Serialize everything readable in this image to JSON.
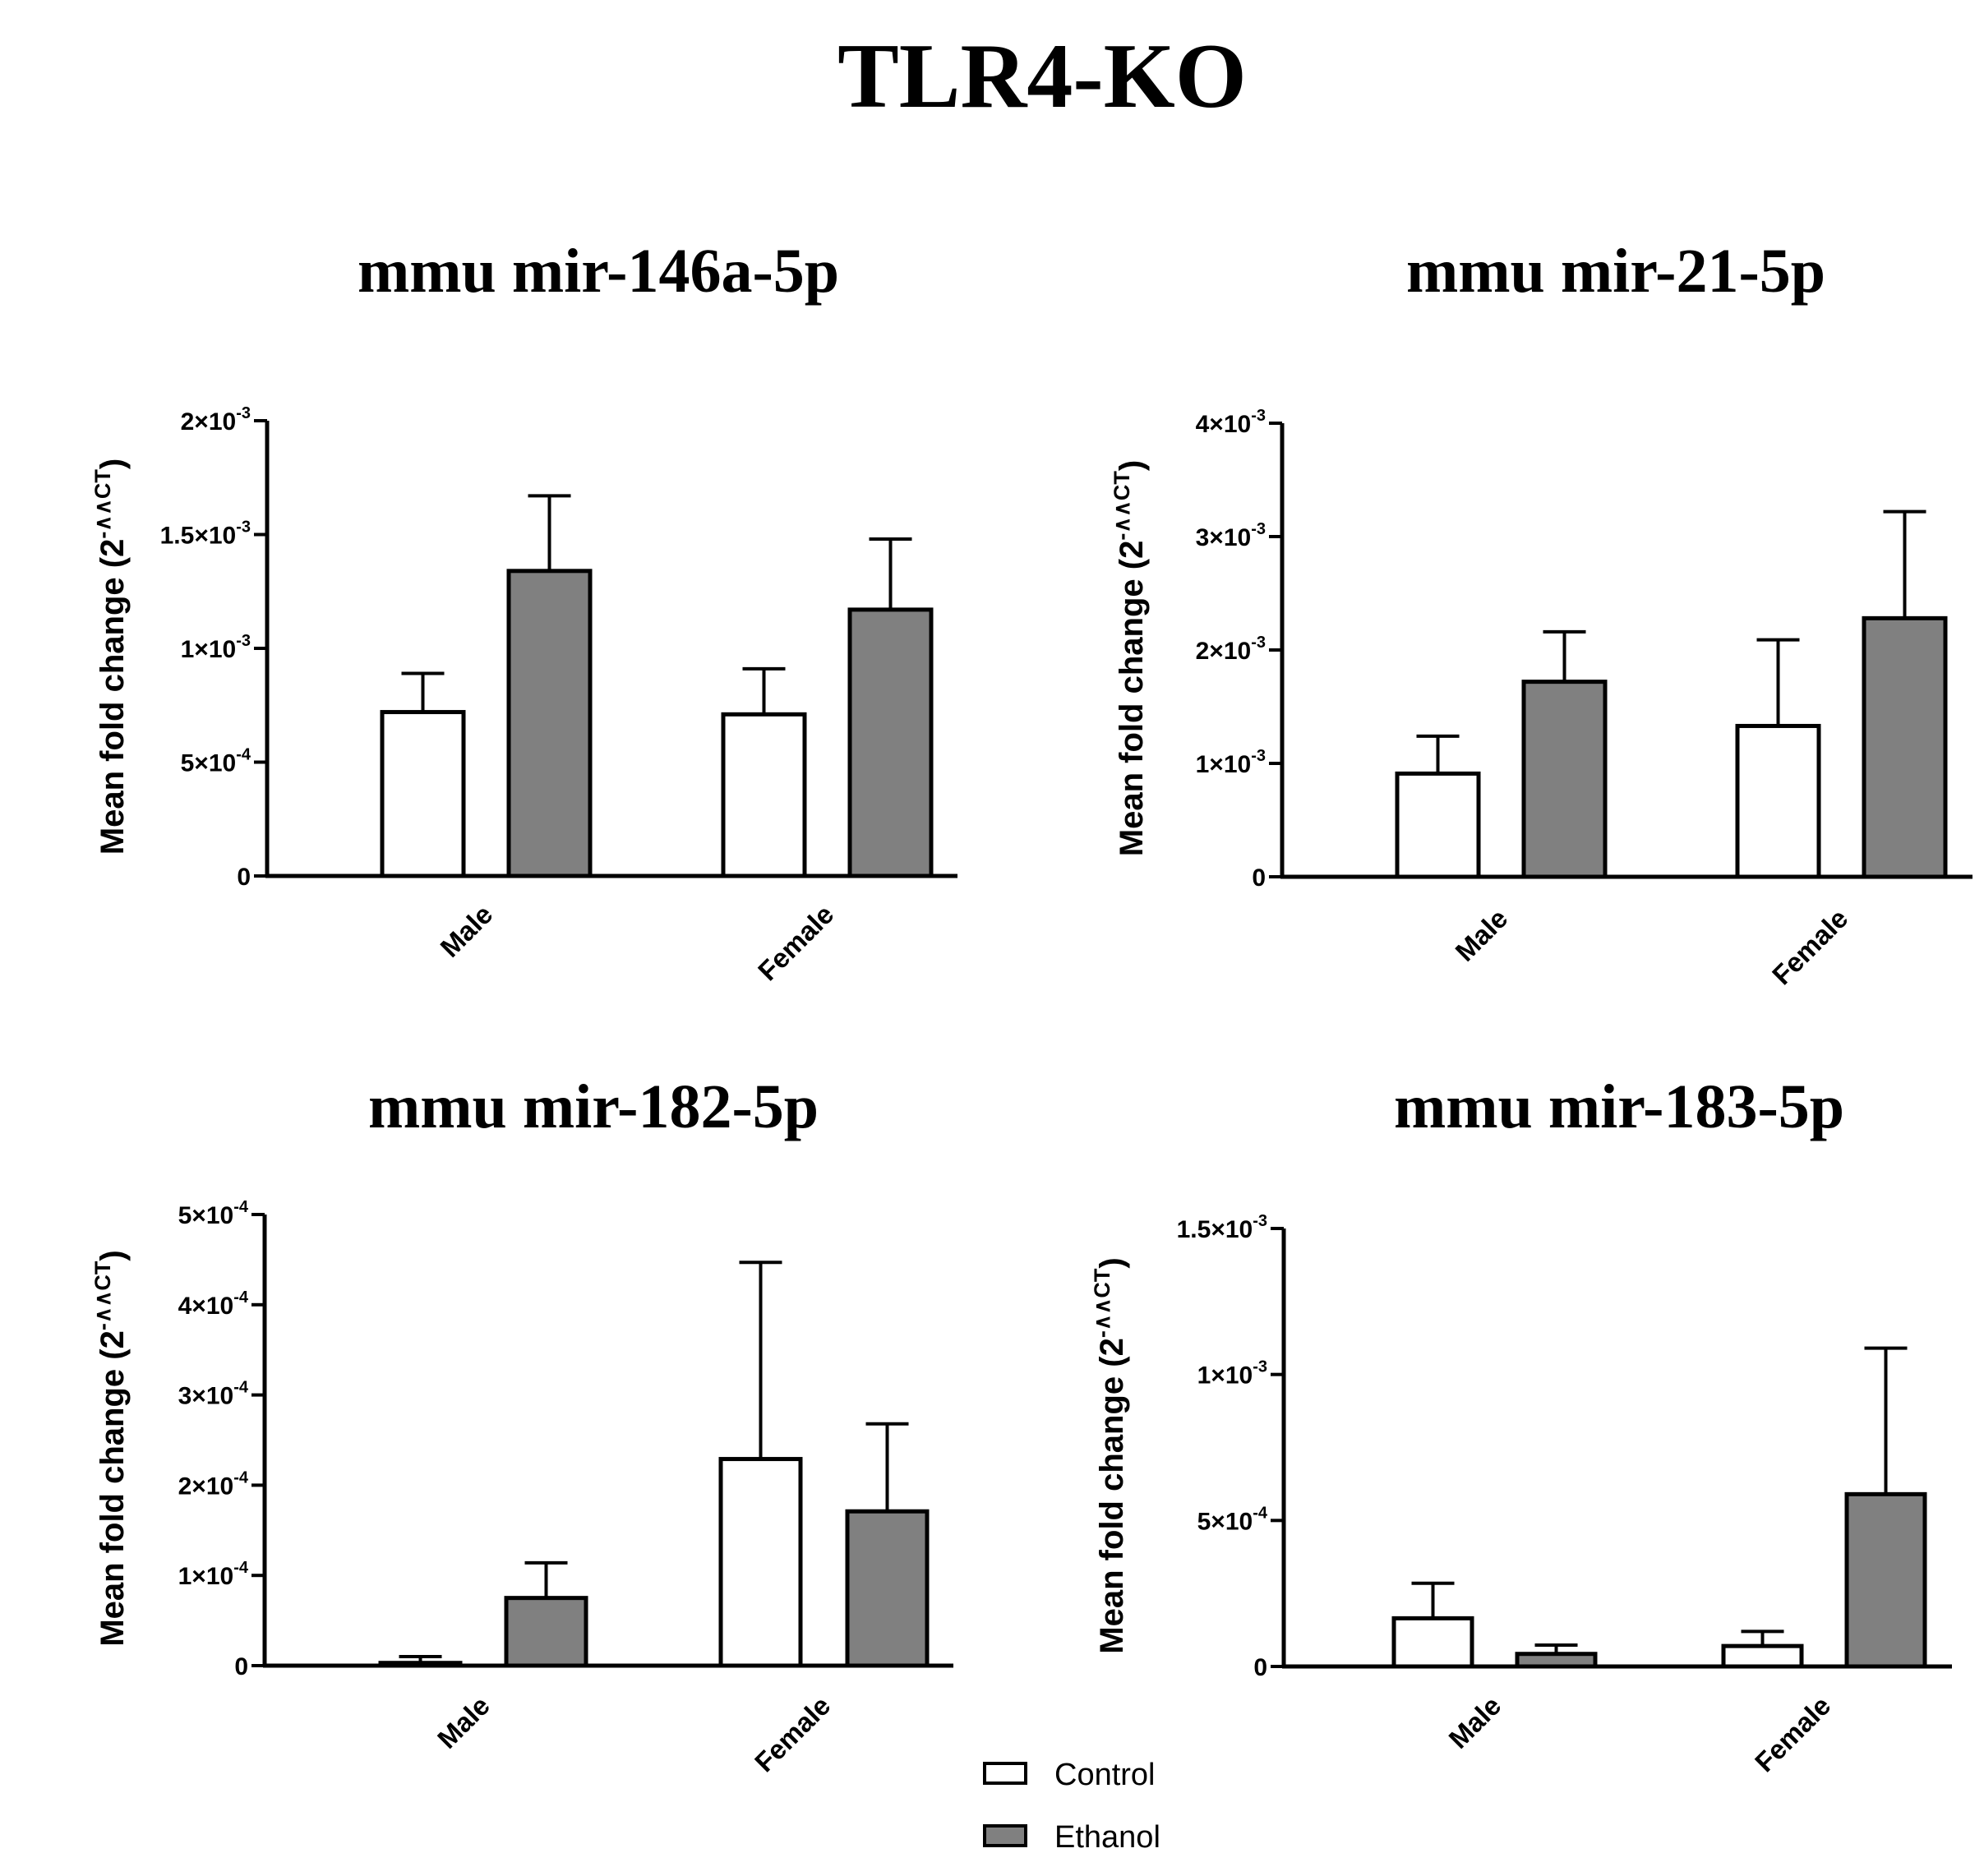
{
  "figure_title": "TLR4-KO",
  "colors": {
    "control": "#ffffff",
    "ethanol": "#808080",
    "stroke": "#000000"
  },
  "legend": [
    {
      "name": "Control",
      "color": "#ffffff"
    },
    {
      "name": "Ethanol",
      "color": "#808080"
    }
  ],
  "chart_data": [
    {
      "type": "bar",
      "title": "mmu mir-146a-5p",
      "ylabel": "Mean fold change (2⁻ᐞᐞCT)",
      "ylabel_base": "Mean fold change (2",
      "ylabel_sup": "-∧∧CT",
      "ylabel_close": ")",
      "categories": [
        "Male",
        "Female"
      ],
      "series": [
        {
          "name": "Control",
          "values": [
            0.00072,
            0.00071
          ],
          "errors": [
            0.00017,
            0.0002
          ]
        },
        {
          "name": "Ethanol",
          "values": [
            0.00134,
            0.00117
          ],
          "errors": [
            0.00033,
            0.00031
          ]
        }
      ],
      "ylim": [
        0,
        0.002
      ],
      "yticks": [
        {
          "value": 0,
          "base": "0",
          "exp": ""
        },
        {
          "value": 0.0005,
          "base": "5×10",
          "exp": "-4"
        },
        {
          "value": 0.001,
          "base": "1×10",
          "exp": "-3"
        },
        {
          "value": 0.0015,
          "base": "1.5×10",
          "exp": "-3"
        },
        {
          "value": 0.002,
          "base": "2×10",
          "exp": "-3"
        }
      ]
    },
    {
      "type": "bar",
      "title": "mmu mir-21-5p",
      "ylabel_base": "Mean fold change (2",
      "ylabel_sup": "-∧∧CT",
      "ylabel_close": ")",
      "categories": [
        "Male",
        "Female"
      ],
      "series": [
        {
          "name": "Control",
          "values": [
            0.00091,
            0.00133
          ],
          "errors": [
            0.00033,
            0.00076
          ]
        },
        {
          "name": "Ethanol",
          "values": [
            0.00172,
            0.00228
          ],
          "errors": [
            0.00044,
            0.00094
          ]
        }
      ],
      "ylim": [
        0,
        0.004
      ],
      "yticks": [
        {
          "value": 0,
          "base": "0",
          "exp": ""
        },
        {
          "value": 0.001,
          "base": "1×10",
          "exp": "-3"
        },
        {
          "value": 0.002,
          "base": "2×10",
          "exp": "-3"
        },
        {
          "value": 0.003,
          "base": "3×10",
          "exp": "-3"
        },
        {
          "value": 0.004,
          "base": "4×10",
          "exp": "-3"
        }
      ]
    },
    {
      "type": "bar",
      "title": "mmu mir-182-5p",
      "ylabel_base": "Mean fold change (2",
      "ylabel_sup": "-∧∧CT",
      "ylabel_close": ")",
      "categories": [
        "Male",
        "Female"
      ],
      "series": [
        {
          "name": "Control",
          "values": [
            3e-06,
            0.000229
          ],
          "errors": [
            7e-06,
            0.000218
          ]
        },
        {
          "name": "Ethanol",
          "values": [
            7.5e-05,
            0.000171
          ],
          "errors": [
            3.9e-05,
            9.7e-05
          ]
        }
      ],
      "ylim": [
        0,
        0.0005
      ],
      "yticks": [
        {
          "value": 0,
          "base": "0",
          "exp": ""
        },
        {
          "value": 0.0001,
          "base": "1×10",
          "exp": "-4"
        },
        {
          "value": 0.0002,
          "base": "2×10",
          "exp": "-4"
        },
        {
          "value": 0.0003,
          "base": "3×10",
          "exp": "-4"
        },
        {
          "value": 0.0004,
          "base": "4×10",
          "exp": "-4"
        },
        {
          "value": 0.0005,
          "base": "5×10",
          "exp": "-4"
        }
      ]
    },
    {
      "type": "bar",
      "title": "mmu mir-183-5p",
      "ylabel_base": "Mean fold change (2",
      "ylabel_sup": "-∧∧CT",
      "ylabel_close": ")",
      "categories": [
        "Male",
        "Female"
      ],
      "series": [
        {
          "name": "Control",
          "values": [
            0.000165,
            7e-05
          ],
          "errors": [
            0.00012,
            5e-05
          ]
        },
        {
          "name": "Ethanol",
          "values": [
            4.3e-05,
            0.00059
          ],
          "errors": [
            3e-05,
            0.0005
          ]
        }
      ],
      "ylim": [
        0,
        0.0015
      ],
      "yticks": [
        {
          "value": 0,
          "base": "0",
          "exp": ""
        },
        {
          "value": 0.0005,
          "base": "5×10",
          "exp": "-4"
        },
        {
          "value": 0.001,
          "base": "1×10",
          "exp": "-3"
        },
        {
          "value": 0.0015,
          "base": "1.5×10",
          "exp": "-3"
        }
      ]
    }
  ]
}
